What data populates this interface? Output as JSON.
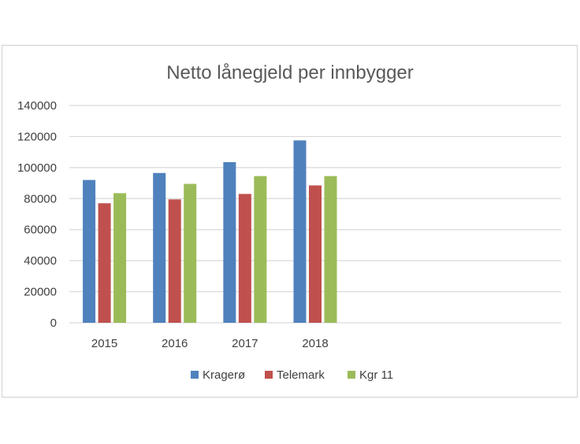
{
  "chart_data": {
    "type": "bar",
    "title": "Netto lånegjeld per innbygger",
    "xlabel": "",
    "ylabel": "",
    "categories": [
      "2015",
      "2016",
      "2017",
      "2018"
    ],
    "slot_count": 7,
    "series": [
      {
        "name": "Kragerø",
        "color": "#4f81bd",
        "values": [
          92000,
          96500,
          103500,
          117500
        ]
      },
      {
        "name": "Telemark",
        "color": "#c0504d",
        "values": [
          77000,
          79500,
          83000,
          88500
        ]
      },
      {
        "name": "Kgr 11",
        "color": "#9bbb59",
        "values": [
          83500,
          89500,
          94500,
          94500
        ]
      }
    ],
    "ylim": [
      0,
      140000
    ],
    "yticks": [
      "0",
      "20000",
      "40000",
      "60000",
      "80000",
      "100000",
      "120000",
      "140000"
    ],
    "grid": true,
    "legend_position": "bottom"
  }
}
